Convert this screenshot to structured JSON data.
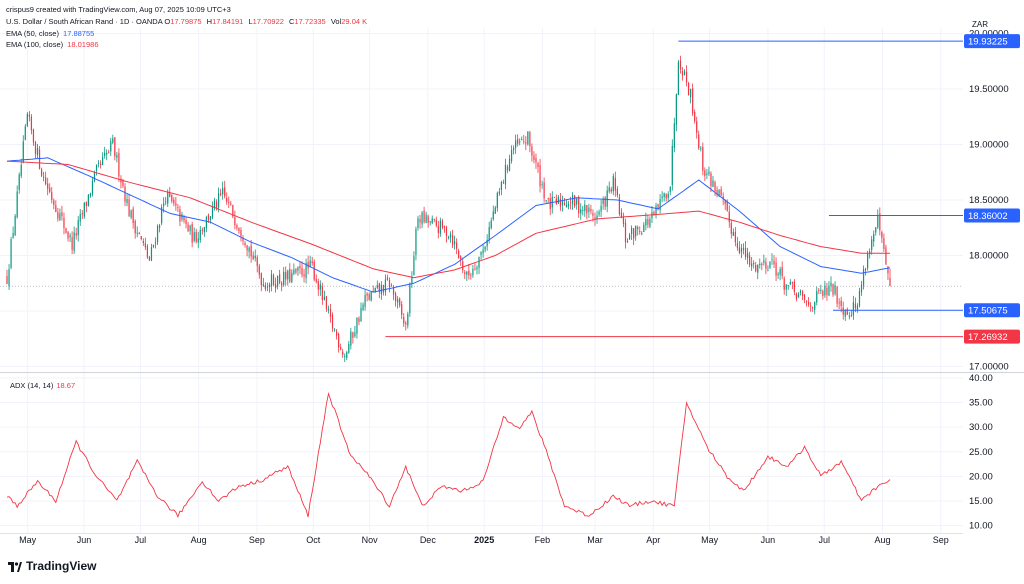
{
  "header": {
    "attribution": "crispus9 created with TradingView.com, Aug 07, 2025 10:09 UTC+3",
    "symbol_line": "U.S. Dollar / South African Rand · 1D · OANDA",
    "ohlc": {
      "o_label": "O",
      "o": "17.79875",
      "h_label": "H",
      "h": "17.84191",
      "l_label": "L",
      "l": "17.70922",
      "c_label": "C",
      "c": "17.72335",
      "vol_label": "Vol",
      "vol": "29.04 K"
    },
    "ema50_label": "EMA (50, close)",
    "ema50_value": "17.88755",
    "ema100_label": "EMA (100, close)",
    "ema100_value": "18.01986",
    "currency": "ZAR"
  },
  "colors": {
    "up": "#089981",
    "down": "#f23645",
    "ema50": "#2962ff",
    "ema100": "#f23645",
    "adx": "#f23645",
    "level_blue": "#2962ff",
    "level_red": "#f23645",
    "grid": "#f0f3fa"
  },
  "adx_panel": {
    "label": "ADX (14, 14)",
    "value": "18.67"
  },
  "branding": {
    "logo_text": "TradingView"
  },
  "chart_data": {
    "type": "candlestick",
    "price_axis": {
      "ticks": [
        "20.00000",
        "19.50000",
        "19.00000",
        "18.50000",
        "18.00000",
        "17.50000",
        "17.00000"
      ],
      "range": [
        16.95,
        20.05
      ]
    },
    "adx_axis": {
      "ticks": [
        "40.00",
        "35.00",
        "30.00",
        "25.00",
        "20.00",
        "15.00",
        "10.00"
      ],
      "range": [
        8.5,
        41
      ]
    },
    "x_labels": [
      "May",
      "Jun",
      "Jul",
      "Aug",
      "Sep",
      "Oct",
      "Nov",
      "Dec",
      "2025",
      "Feb",
      "Mar",
      "Apr",
      "May",
      "Jun",
      "Jul",
      "Aug",
      "Sep"
    ],
    "price_labels": [
      {
        "text": "19.93225",
        "value": 19.93225,
        "color": "blue"
      },
      {
        "text": "18.36002",
        "value": 18.36002,
        "color": "blue"
      },
      {
        "text": "17.50675",
        "value": 17.50675,
        "color": "blue"
      },
      {
        "text": "17.26932",
        "value": 17.26932,
        "color": "red"
      }
    ],
    "levels": [
      {
        "value": 19.93225,
        "from_day": 330,
        "color": "blue"
      },
      {
        "value": 18.36002,
        "from_day": 404,
        "color": "blue"
      },
      {
        "value": 17.50675,
        "from_day": 406,
        "color": "blue"
      },
      {
        "value": 17.26932,
        "from_day": 186,
        "color": "red"
      }
    ],
    "last_close": 17.72335,
    "anchors": [
      [
        0,
        17.8
      ],
      [
        10,
        19.25
      ],
      [
        18,
        18.7
      ],
      [
        32,
        18.1
      ],
      [
        44,
        18.75
      ],
      [
        52,
        19.0
      ],
      [
        60,
        18.4
      ],
      [
        70,
        17.95
      ],
      [
        78,
        18.55
      ],
      [
        92,
        18.15
      ],
      [
        106,
        18.55
      ],
      [
        116,
        18.2
      ],
      [
        126,
        17.75
      ],
      [
        138,
        17.8
      ],
      [
        150,
        17.9
      ],
      [
        158,
        17.45
      ],
      [
        166,
        17.1
      ],
      [
        176,
        17.6
      ],
      [
        188,
        17.75
      ],
      [
        196,
        17.35
      ],
      [
        202,
        18.35
      ],
      [
        218,
        18.2
      ],
      [
        226,
        17.8
      ],
      [
        234,
        18.05
      ],
      [
        248,
        18.95
      ],
      [
        256,
        19.05
      ],
      [
        266,
        18.45
      ],
      [
        276,
        18.5
      ],
      [
        290,
        18.35
      ],
      [
        298,
        18.65
      ],
      [
        304,
        18.15
      ],
      [
        318,
        18.35
      ],
      [
        326,
        18.65
      ],
      [
        330,
        19.8
      ],
      [
        336,
        19.45
      ],
      [
        342,
        18.8
      ],
      [
        350,
        18.55
      ],
      [
        358,
        18.15
      ],
      [
        366,
        17.9
      ],
      [
        376,
        17.95
      ],
      [
        382,
        17.75
      ],
      [
        394,
        17.55
      ],
      [
        400,
        17.65
      ],
      [
        406,
        17.7
      ],
      [
        412,
        17.5
      ],
      [
        418,
        17.55
      ],
      [
        422,
        17.95
      ],
      [
        428,
        18.3
      ],
      [
        434,
        17.72
      ]
    ],
    "ema50_anchors": [
      [
        0,
        18.85
      ],
      [
        20,
        18.88
      ],
      [
        40,
        18.72
      ],
      [
        60,
        18.55
      ],
      [
        80,
        18.38
      ],
      [
        100,
        18.3
      ],
      [
        120,
        18.12
      ],
      [
        140,
        17.98
      ],
      [
        160,
        17.8
      ],
      [
        180,
        17.67
      ],
      [
        200,
        17.75
      ],
      [
        220,
        17.92
      ],
      [
        240,
        18.18
      ],
      [
        260,
        18.45
      ],
      [
        280,
        18.52
      ],
      [
        300,
        18.5
      ],
      [
        320,
        18.42
      ],
      [
        340,
        18.68
      ],
      [
        360,
        18.4
      ],
      [
        380,
        18.08
      ],
      [
        400,
        17.9
      ],
      [
        420,
        17.84
      ],
      [
        434,
        17.89
      ]
    ],
    "ema100_anchors": [
      [
        0,
        18.85
      ],
      [
        30,
        18.82
      ],
      [
        60,
        18.66
      ],
      [
        90,
        18.52
      ],
      [
        120,
        18.3
      ],
      [
        150,
        18.1
      ],
      [
        180,
        17.88
      ],
      [
        200,
        17.8
      ],
      [
        220,
        17.87
      ],
      [
        240,
        18.0
      ],
      [
        260,
        18.2
      ],
      [
        290,
        18.33
      ],
      [
        320,
        18.37
      ],
      [
        340,
        18.4
      ],
      [
        360,
        18.3
      ],
      [
        380,
        18.18
      ],
      [
        400,
        18.08
      ],
      [
        420,
        18.02
      ],
      [
        434,
        18.02
      ]
    ],
    "adx_anchors": [
      [
        0,
        16
      ],
      [
        5,
        14
      ],
      [
        15,
        19
      ],
      [
        24,
        15
      ],
      [
        34,
        27
      ],
      [
        44,
        20
      ],
      [
        54,
        15
      ],
      [
        64,
        23
      ],
      [
        74,
        16
      ],
      [
        84,
        12
      ],
      [
        96,
        19
      ],
      [
        104,
        15
      ],
      [
        114,
        18
      ],
      [
        124,
        19
      ],
      [
        138,
        22
      ],
      [
        148,
        12
      ],
      [
        158,
        37
      ],
      [
        168,
        25
      ],
      [
        178,
        20
      ],
      [
        188,
        14
      ],
      [
        196,
        22
      ],
      [
        204,
        14
      ],
      [
        214,
        18
      ],
      [
        224,
        17
      ],
      [
        234,
        19
      ],
      [
        244,
        32
      ],
      [
        252,
        30
      ],
      [
        258,
        33
      ],
      [
        266,
        24
      ],
      [
        274,
        14
      ],
      [
        286,
        12
      ],
      [
        298,
        16
      ],
      [
        306,
        14
      ],
      [
        316,
        15
      ],
      [
        328,
        14
      ],
      [
        334,
        35
      ],
      [
        344,
        26
      ],
      [
        354,
        20
      ],
      [
        362,
        17
      ],
      [
        374,
        24
      ],
      [
        384,
        22
      ],
      [
        392,
        26
      ],
      [
        400,
        20
      ],
      [
        410,
        23
      ],
      [
        420,
        15
      ],
      [
        428,
        18
      ],
      [
        434,
        19
      ]
    ],
    "total_days": 470
  }
}
